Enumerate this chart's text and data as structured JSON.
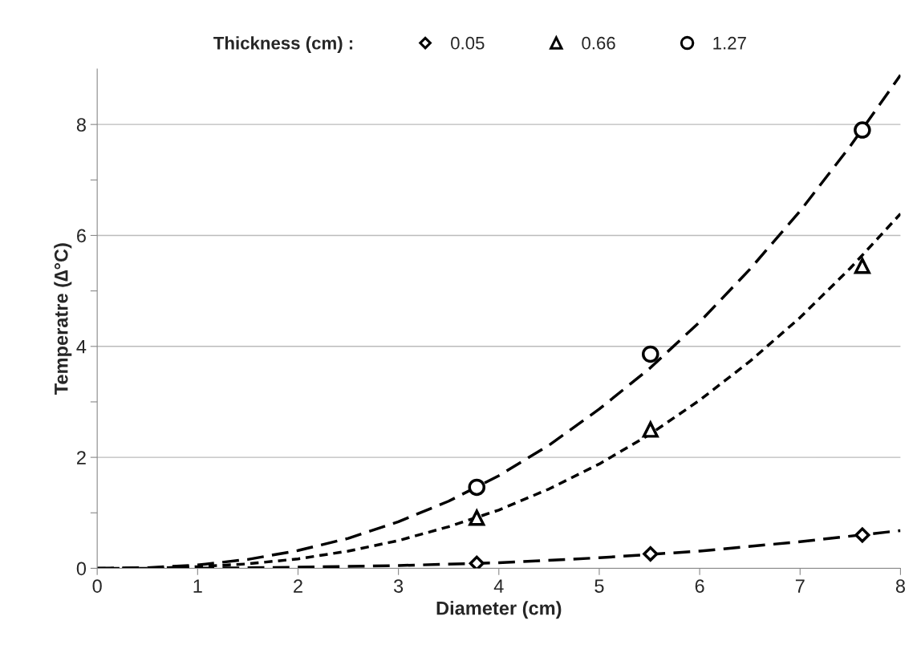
{
  "chart_data": {
    "type": "scatter",
    "xlabel": "Diameter (cm)",
    "ylabel": "Temperatre (∆°C)",
    "legend_title": "Thickness (cm) :",
    "legend": "top",
    "xlim": [
      0,
      8
    ],
    "xticks": [
      0,
      1,
      2,
      3,
      4,
      5,
      6,
      7,
      8
    ],
    "ylim": [
      0,
      9
    ],
    "yticks": [
      0,
      {
        "value": 1,
        "label": null
      },
      2,
      {
        "value": 3,
        "label": null
      },
      4,
      {
        "value": 5,
        "label": null
      },
      6,
      {
        "value": 7,
        "label": null
      },
      8
    ],
    "grid": "y",
    "series": [
      {
        "name": "0.05",
        "marker": "diamond",
        "color": "#000000",
        "x": [
          3.78,
          5.51,
          7.62
        ],
        "values": [
          0.09,
          0.26,
          0.6
        ]
      },
      {
        "name": "0.66",
        "marker": "triangle",
        "color": "#000000",
        "x": [
          3.78,
          5.51,
          7.62
        ],
        "values": [
          0.91,
          2.5,
          5.45
        ]
      },
      {
        "name": "1.27",
        "marker": "circle",
        "color": "#000000",
        "x": [
          3.78,
          5.51,
          7.62
        ],
        "values": [
          1.46,
          3.86,
          7.9
        ]
      },
      {
        "type": "line",
        "line_style": "dashed",
        "marker": "none",
        "color": "#000000",
        "x": [
          0,
          1,
          2,
          3,
          4,
          5,
          6,
          7,
          8
        ],
        "values": [
          0,
          0,
          0.02,
          0.05,
          0.1,
          0.19,
          0.31,
          0.48,
          0.68
        ]
      },
      {
        "type": "line",
        "line_style": "dotted",
        "marker": "none",
        "color": "#000000",
        "x": [
          0,
          0.5,
          1,
          1.5,
          2,
          2.5,
          3,
          3.5,
          4,
          4.5,
          5,
          5.5,
          6,
          6.5,
          7,
          7.5,
          8
        ],
        "values": [
          0,
          0,
          0.03,
          0.08,
          0.17,
          0.31,
          0.5,
          0.75,
          1.05,
          1.43,
          1.88,
          2.41,
          3.03,
          3.73,
          4.52,
          5.41,
          6.39
        ]
      },
      {
        "type": "line",
        "line_style": "dashed",
        "marker": "none",
        "color": "#000000",
        "x": [
          0,
          0.5,
          1,
          1.5,
          2,
          2.5,
          3,
          3.5,
          4,
          4.5,
          5,
          5.5,
          6,
          6.5,
          7,
          7.5,
          8
        ],
        "values": [
          0,
          0.01,
          0.06,
          0.16,
          0.32,
          0.54,
          0.84,
          1.21,
          1.67,
          2.22,
          2.87,
          3.6,
          4.44,
          5.39,
          6.44,
          7.61,
          8.89
        ]
      }
    ]
  }
}
